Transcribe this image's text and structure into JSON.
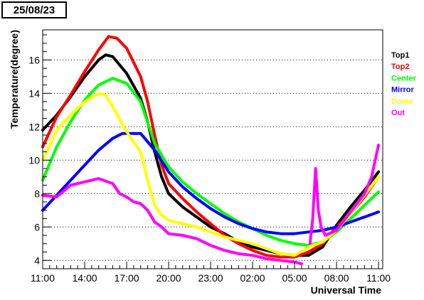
{
  "date_label": "25/08/23",
  "chart_data": {
    "type": "line",
    "title": "",
    "xlabel": "Universal Time",
    "ylabel": "Temperature(degree)",
    "xlim": [
      0,
      24.3
    ],
    "ylim": [
      3.5,
      17.8
    ],
    "grid": "horizontal dotted",
    "legend_position": "right",
    "x_ticks": [
      {
        "x": 0,
        "label": "11:00"
      },
      {
        "x": 3,
        "label": "14:00"
      },
      {
        "x": 6,
        "label": "17:00"
      },
      {
        "x": 9,
        "label": "20:00"
      },
      {
        "x": 12,
        "label": "23:00"
      },
      {
        "x": 15,
        "label": "02:00"
      },
      {
        "x": 18,
        "label": "05:00"
      },
      {
        "x": 21,
        "label": "08:00"
      },
      {
        "x": 24,
        "label": "11:00"
      }
    ],
    "y_ticks": [
      4,
      6,
      8,
      10,
      12,
      14,
      16
    ],
    "series": [
      {
        "name": "Top1",
        "color": "#000000",
        "points": [
          [
            0,
            11.8
          ],
          [
            1,
            12.7
          ],
          [
            2,
            13.8
          ],
          [
            3,
            15.0
          ],
          [
            4,
            16.0
          ],
          [
            4.5,
            16.3
          ],
          [
            5,
            16.2
          ],
          [
            6,
            15.2
          ],
          [
            7,
            13.7
          ],
          [
            7.5,
            12.3
          ],
          [
            8,
            10.5
          ],
          [
            8.5,
            9.0
          ],
          [
            9,
            8.0
          ],
          [
            10,
            7.2
          ],
          [
            11,
            6.6
          ],
          [
            12,
            6.0
          ],
          [
            13,
            5.6
          ],
          [
            14,
            5.1
          ],
          [
            15,
            4.8
          ],
          [
            16,
            4.6
          ],
          [
            17,
            4.4
          ],
          [
            18,
            4.3
          ],
          [
            19,
            4.3
          ],
          [
            20,
            4.8
          ],
          [
            21,
            6.1
          ],
          [
            22,
            7.2
          ],
          [
            23,
            8.2
          ],
          [
            24,
            9.3
          ]
        ]
      },
      {
        "name": "Top2",
        "color": "#ff0000",
        "points": [
          [
            0,
            10.8
          ],
          [
            1,
            12.6
          ],
          [
            2,
            13.9
          ],
          [
            3,
            15.3
          ],
          [
            4,
            16.6
          ],
          [
            4.7,
            17.4
          ],
          [
            5.3,
            17.3
          ],
          [
            6,
            16.7
          ],
          [
            7,
            15.0
          ],
          [
            7.5,
            13.5
          ],
          [
            8,
            11.5
          ],
          [
            8.5,
            9.7
          ],
          [
            9,
            8.6
          ],
          [
            10,
            7.7
          ],
          [
            11,
            6.9
          ],
          [
            12,
            6.2
          ],
          [
            13,
            5.5
          ],
          [
            14,
            5.0
          ],
          [
            15,
            4.6
          ],
          [
            16,
            4.3
          ],
          [
            17,
            4.2
          ],
          [
            18,
            4.2
          ],
          [
            19,
            4.5
          ],
          [
            20,
            5.0
          ],
          [
            21,
            6.0
          ],
          [
            22,
            6.8
          ],
          [
            23,
            7.8
          ],
          [
            24,
            9.0
          ]
        ]
      },
      {
        "name": "Center",
        "color": "#00ff00",
        "points": [
          [
            0,
            8.8
          ],
          [
            1,
            10.8
          ],
          [
            2,
            12.3
          ],
          [
            3,
            13.6
          ],
          [
            4,
            14.5
          ],
          [
            5,
            14.9
          ],
          [
            6,
            14.6
          ],
          [
            7,
            13.5
          ],
          [
            8,
            11.0
          ],
          [
            9,
            9.6
          ],
          [
            10,
            8.7
          ],
          [
            11,
            8.0
          ],
          [
            12,
            7.4
          ],
          [
            13,
            6.8
          ],
          [
            14,
            6.3
          ],
          [
            15,
            5.9
          ],
          [
            16,
            5.5
          ],
          [
            17,
            5.2
          ],
          [
            18,
            5.0
          ],
          [
            19,
            4.9
          ],
          [
            20,
            5.1
          ],
          [
            21,
            5.7
          ],
          [
            22,
            6.5
          ],
          [
            23,
            7.3
          ],
          [
            24,
            8.1
          ]
        ]
      },
      {
        "name": "Mirror",
        "color": "#0000ff",
        "points": [
          [
            0,
            7.0
          ],
          [
            1,
            7.9
          ],
          [
            2,
            8.8
          ],
          [
            3,
            9.7
          ],
          [
            4,
            10.6
          ],
          [
            5,
            11.3
          ],
          [
            5.7,
            11.6
          ],
          [
            7,
            11.6
          ],
          [
            8,
            10.6
          ],
          [
            9,
            9.3
          ],
          [
            10,
            8.4
          ],
          [
            11,
            7.7
          ],
          [
            12,
            7.1
          ],
          [
            13,
            6.6
          ],
          [
            14,
            6.2
          ],
          [
            15,
            5.9
          ],
          [
            16,
            5.7
          ],
          [
            17,
            5.6
          ],
          [
            18,
            5.6
          ],
          [
            19,
            5.7
          ],
          [
            20,
            5.8
          ],
          [
            21,
            6.0
          ],
          [
            22,
            6.3
          ],
          [
            23,
            6.6
          ],
          [
            24,
            6.9
          ]
        ]
      },
      {
        "name": "Dome",
        "color": "#ffff00",
        "points": [
          [
            0,
            10.0
          ],
          [
            1,
            11.8
          ],
          [
            2,
            12.7
          ],
          [
            3,
            13.5
          ],
          [
            4,
            14.0
          ],
          [
            4.5,
            13.9
          ],
          [
            5,
            13.2
          ],
          [
            6,
            11.7
          ],
          [
            7,
            10.5
          ],
          [
            7.5,
            8.8
          ],
          [
            8,
            7.3
          ],
          [
            8.5,
            6.7
          ],
          [
            9,
            6.4
          ],
          [
            10,
            6.2
          ],
          [
            11,
            6.0
          ],
          [
            12,
            5.7
          ],
          [
            13,
            5.4
          ],
          [
            14,
            5.2
          ],
          [
            15,
            5.0
          ],
          [
            16,
            4.7
          ],
          [
            17,
            4.4
          ],
          [
            18,
            4.3
          ],
          [
            19,
            4.8
          ],
          [
            20,
            5.1
          ],
          [
            21,
            5.8
          ],
          [
            22,
            6.8
          ],
          [
            23,
            7.9
          ],
          [
            24,
            9.0
          ]
        ]
      },
      {
        "name": "Out",
        "color": "#ff00ff",
        "points": [
          [
            0,
            7.9
          ],
          [
            1,
            7.8
          ],
          [
            2,
            8.5
          ],
          [
            3,
            8.7
          ],
          [
            4,
            8.9
          ],
          [
            5,
            8.6
          ],
          [
            5.5,
            8.0
          ],
          [
            6,
            7.8
          ],
          [
            6.5,
            7.5
          ],
          [
            7,
            7.4
          ],
          [
            7.5,
            7.0
          ],
          [
            8,
            6.3
          ],
          [
            8.5,
            6.0
          ],
          [
            9,
            5.6
          ],
          [
            10,
            5.5
          ],
          [
            11,
            5.3
          ],
          [
            12,
            4.9
          ],
          [
            13,
            4.6
          ],
          [
            14,
            4.4
          ],
          [
            15,
            4.3
          ],
          [
            16,
            4.1
          ],
          [
            17,
            4.0
          ],
          [
            18,
            3.9
          ],
          [
            18.5,
            3.8
          ]
        ]
      },
      {
        "name": "Out",
        "color": "#ff00ff",
        "points": [
          [
            19.1,
            5.0
          ],
          [
            19.3,
            6.5
          ],
          [
            19.5,
            9.5
          ],
          [
            19.7,
            7.0
          ],
          [
            19.9,
            6.0
          ],
          [
            20.2,
            5.5
          ],
          [
            21,
            5.8
          ],
          [
            22,
            6.9
          ],
          [
            23,
            8.0
          ],
          [
            23.5,
            9.0
          ],
          [
            24,
            10.9
          ]
        ]
      }
    ],
    "legend": [
      {
        "label": "Top1",
        "color": "#000000"
      },
      {
        "label": "Top2",
        "color": "#ff0000"
      },
      {
        "label": "Center",
        "color": "#00ff00"
      },
      {
        "label": "Mirror",
        "color": "#0000ff"
      },
      {
        "label": "Dome",
        "color": "#ffff00"
      },
      {
        "label": "Out",
        "color": "#ff00ff"
      }
    ]
  }
}
